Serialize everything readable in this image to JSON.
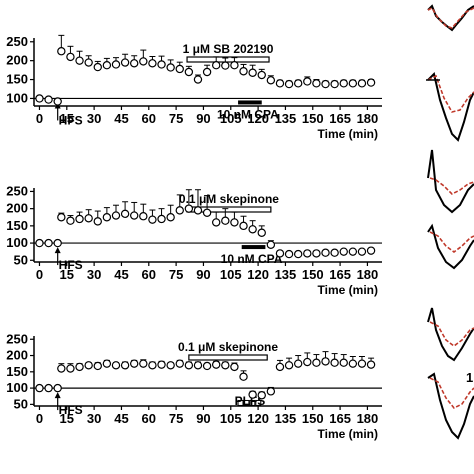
{
  "chart_data": [
    {
      "type": "scatter",
      "panel": "top",
      "x_ticks": [
        0,
        15,
        30,
        45,
        60,
        75,
        90,
        105,
        120,
        135,
        150,
        165,
        180
      ],
      "y_ticks": [
        100,
        150,
        200,
        250
      ],
      "ylim": [
        80,
        260
      ],
      "xlim": [
        -3,
        188
      ],
      "xlabel": "Time (min)",
      "baseline": 100,
      "series": [
        {
          "x": [
            0,
            5,
            10,
            12,
            17,
            22,
            27,
            32,
            37,
            42,
            47,
            52,
            57,
            62,
            67,
            72,
            77,
            82,
            87,
            92,
            97,
            102,
            107,
            112,
            117,
            122,
            127,
            132,
            137,
            142,
            147,
            152,
            157,
            162,
            167,
            172,
            177,
            182
          ],
          "y": [
            100,
            97,
            92,
            225,
            210,
            200,
            195,
            183,
            188,
            190,
            195,
            193,
            198,
            193,
            190,
            182,
            178,
            170,
            150,
            170,
            188,
            187,
            188,
            172,
            168,
            162,
            148,
            140,
            138,
            140,
            145,
            140,
            138,
            138,
            140,
            140,
            140,
            142
          ],
          "err": [
            0,
            0,
            0,
            42,
            28,
            25,
            18,
            15,
            18,
            18,
            22,
            20,
            30,
            18,
            22,
            20,
            18,
            15,
            12,
            18,
            22,
            20,
            20,
            18,
            20,
            15,
            12,
            8,
            8,
            8,
            12,
            10,
            8,
            8,
            8,
            8,
            8,
            8
          ]
        }
      ],
      "annotations": {
        "hfs": "HFS",
        "drug_bar": "1 μM SB 202190",
        "drug_range": [
          81,
          126
        ],
        "cpa_label": "10 nM CPA",
        "cpa_range": [
          109,
          122
        ]
      }
    },
    {
      "type": "scatter",
      "panel": "middle",
      "x_ticks": [
        0,
        15,
        30,
        45,
        60,
        75,
        90,
        105,
        120,
        135,
        150,
        165,
        180
      ],
      "y_ticks": [
        50,
        100,
        150,
        200,
        250
      ],
      "ylim": [
        45,
        260
      ],
      "xlim": [
        -3,
        188
      ],
      "xlabel": "Time (min)",
      "baseline": 100,
      "series": [
        {
          "x": [
            0,
            5,
            10,
            12,
            17,
            22,
            27,
            32,
            37,
            42,
            47,
            52,
            57,
            62,
            67,
            72,
            77,
            82,
            87,
            92,
            97,
            102,
            107,
            112,
            117,
            122,
            127,
            132,
            137,
            142,
            147,
            152,
            157,
            162,
            167,
            172,
            177,
            182
          ],
          "y": [
            100,
            100,
            100,
            175,
            165,
            170,
            172,
            163,
            175,
            180,
            185,
            180,
            178,
            168,
            170,
            175,
            195,
            200,
            195,
            188,
            160,
            165,
            160,
            150,
            140,
            130,
            95,
            70,
            68,
            68,
            70,
            70,
            72,
            72,
            75,
            75,
            75,
            78
          ],
          "err": [
            0,
            0,
            0,
            12,
            15,
            20,
            25,
            30,
            28,
            30,
            35,
            38,
            35,
            28,
            30,
            35,
            45,
            55,
            60,
            50,
            30,
            35,
            30,
            28,
            25,
            20,
            12,
            5,
            5,
            5,
            5,
            5,
            5,
            5,
            5,
            5,
            5,
            5
          ]
        }
      ],
      "annotations": {
        "hfs": "HFS",
        "drug_bar": "0.1 μM skepinone",
        "drug_range": [
          81,
          127
        ],
        "cpa_label": "10 nM CPA",
        "cpa_range": [
          111,
          124
        ]
      }
    },
    {
      "type": "scatter",
      "panel": "bottom",
      "x_ticks": [
        0,
        15,
        30,
        45,
        60,
        75,
        90,
        105,
        120,
        135,
        150,
        165,
        180
      ],
      "y_ticks": [
        50,
        100,
        150,
        200,
        250
      ],
      "ylim": [
        45,
        260
      ],
      "xlim": [
        -3,
        188
      ],
      "xlabel": "Time (min)",
      "baseline": 100,
      "series": [
        {
          "x": [
            0,
            5,
            10,
            12,
            17,
            22,
            27,
            32,
            37,
            42,
            47,
            52,
            57,
            62,
            67,
            72,
            77,
            82,
            87,
            92,
            97,
            102,
            107,
            112,
            117,
            122,
            127,
            132,
            137,
            142,
            147,
            152,
            157,
            162,
            167,
            172,
            177,
            182
          ],
          "y": [
            100,
            100,
            100,
            160,
            160,
            165,
            170,
            168,
            175,
            170,
            170,
            175,
            175,
            170,
            172,
            170,
            175,
            170,
            170,
            168,
            172,
            170,
            165,
            135,
            80,
            78,
            90,
            165,
            170,
            175,
            180,
            178,
            182,
            178,
            178,
            175,
            175,
            172
          ],
          "err": [
            0,
            0,
            0,
            15,
            15,
            10,
            8,
            10,
            10,
            8,
            10,
            10,
            12,
            10,
            10,
            8,
            10,
            10,
            10,
            8,
            10,
            10,
            12,
            18,
            10,
            10,
            12,
            20,
            22,
            25,
            28,
            25,
            30,
            28,
            25,
            22,
            22,
            20
          ]
        }
      ],
      "annotations": {
        "hfs": "HFS",
        "drug_bar": "0.1 μM skepinone",
        "drug_range": [
          82,
          125
        ],
        "plfs_label": "PLFS",
        "plfs_range": [
          109,
          122
        ]
      }
    }
  ],
  "right_edge_label": "1",
  "colors": {
    "trace_black": "#000000",
    "trace_red": "#c0392b"
  }
}
